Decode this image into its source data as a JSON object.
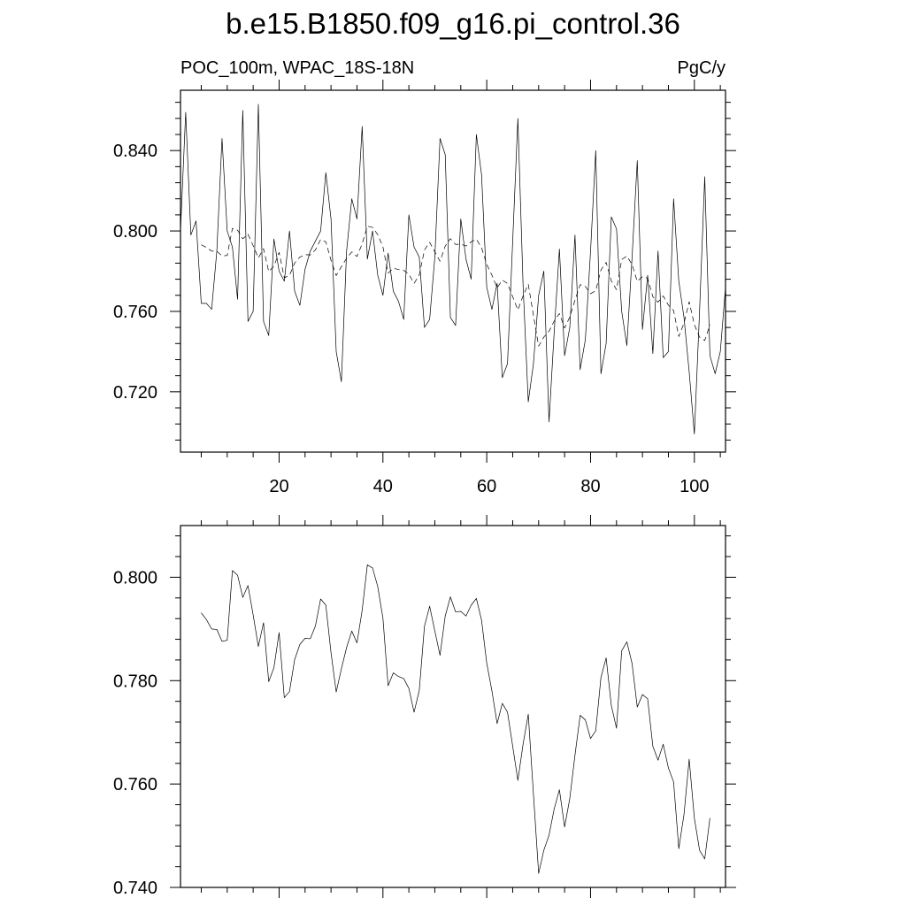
{
  "figure": {
    "title": "b.e15.B1850.f09_g16.pi_control.36",
    "left_subtitle": "POC_100m, WPAC_18S-18N",
    "right_subtitle": "PgC/y"
  },
  "chart_data": [
    {
      "type": "line",
      "title": "b.e15.B1850.f09_g16.pi_control.36",
      "subtitle_left": "POC_100m, WPAC_18S-18N",
      "subtitle_right": "PgC/y",
      "xlim": [
        1,
        106
      ],
      "ylim": [
        0.69,
        0.87
      ],
      "x_ticks": [
        20,
        40,
        60,
        80,
        100
      ],
      "y_ticks": [
        0.72,
        0.76,
        0.8,
        0.84
      ],
      "x_tick_labels": [
        "20",
        "40",
        "60",
        "80",
        "100"
      ],
      "y_tick_labels": [
        "0.720",
        "0.760",
        "0.800",
        "0.840"
      ],
      "grid": false,
      "series": [
        {
          "style": "solid",
          "x_start": 1,
          "values": [
            0.8,
            0.859,
            0.798,
            0.805,
            0.764,
            0.764,
            0.761,
            0.79,
            0.846,
            0.8,
            0.792,
            0.766,
            0.86,
            0.755,
            0.76,
            0.863,
            0.755,
            0.748,
            0.796,
            0.78,
            0.775,
            0.8,
            0.77,
            0.763,
            0.781,
            0.79,
            0.795,
            0.8,
            0.829,
            0.806,
            0.74,
            0.725,
            0.79,
            0.816,
            0.806,
            0.852,
            0.786,
            0.8,
            0.778,
            0.768,
            0.789,
            0.77,
            0.765,
            0.756,
            0.808,
            0.792,
            0.787,
            0.752,
            0.756,
            0.787,
            0.846,
            0.838,
            0.757,
            0.753,
            0.806,
            0.786,
            0.776,
            0.848,
            0.828,
            0.772,
            0.761,
            0.774,
            0.727,
            0.734,
            0.795,
            0.856,
            0.773,
            0.715,
            0.734,
            0.768,
            0.78,
            0.705,
            0.75,
            0.791,
            0.738,
            0.752,
            0.798,
            0.731,
            0.746,
            0.79,
            0.84,
            0.729,
            0.744,
            0.807,
            0.801,
            0.76,
            0.743,
            0.787,
            0.835,
            0.751,
            0.778,
            0.739,
            0.79,
            0.737,
            0.74,
            0.816,
            0.775,
            0.757,
            0.73,
            0.699,
            0.76,
            0.827,
            0.738,
            0.729,
            0.74,
            0.772
          ]
        },
        {
          "style": "dashed",
          "x_start": 5,
          "values": [
            0.7931,
            0.7918,
            0.79,
            0.7899,
            0.7876,
            0.7878,
            0.8013,
            0.8004,
            0.7961,
            0.7984,
            0.7927,
            0.7866,
            0.7912,
            0.7798,
            0.7825,
            0.7893,
            0.7767,
            0.7779,
            0.7841,
            0.787,
            0.7882,
            0.7881,
            0.7906,
            0.7958,
            0.7946,
            0.7854,
            0.7778,
            0.7823,
            0.7864,
            0.7896,
            0.7873,
            0.7936,
            0.8024,
            0.8018,
            0.7982,
            0.7921,
            0.779,
            0.7815,
            0.7808,
            0.7804,
            0.7785,
            0.7739,
            0.7781,
            0.7905,
            0.7944,
            0.7896,
            0.7849,
            0.7925,
            0.7962,
            0.7933,
            0.7934,
            0.7925,
            0.7946,
            0.7959,
            0.7917,
            0.7834,
            0.778,
            0.7717,
            0.7756,
            0.7739,
            0.7673,
            0.7607,
            0.7677,
            0.7735,
            0.758,
            0.7427,
            0.7472,
            0.7501,
            0.7552,
            0.7589,
            0.7517,
            0.7572,
            0.7656,
            0.7733,
            0.7724,
            0.7688,
            0.7703,
            0.7806,
            0.7844,
            0.7752,
            0.7708,
            0.7858,
            0.7875,
            0.7833,
            0.7749,
            0.7773,
            0.7765,
            0.7673,
            0.7646,
            0.7677,
            0.7631,
            0.7604,
            0.7475,
            0.7541,
            0.7648,
            0.7534,
            0.7472,
            0.7455,
            0.7534
          ]
        }
      ]
    },
    {
      "type": "line",
      "xlim": [
        1,
        106
      ],
      "ylim": [
        0.74,
        0.81
      ],
      "x_ticks": [
        20,
        40,
        60,
        80,
        100
      ],
      "y_ticks": [
        0.74,
        0.76,
        0.78,
        0.8
      ],
      "y_tick_labels": [
        "0.740",
        "0.760",
        "0.780",
        "0.800"
      ],
      "grid": false,
      "series": [
        {
          "style": "solid",
          "x_start": 5,
          "values": [
            0.7931,
            0.7918,
            0.79,
            0.7899,
            0.7876,
            0.7878,
            0.8013,
            0.8004,
            0.7961,
            0.7984,
            0.7927,
            0.7866,
            0.7912,
            0.7798,
            0.7825,
            0.7893,
            0.7767,
            0.7779,
            0.7841,
            0.787,
            0.7882,
            0.7881,
            0.7906,
            0.7958,
            0.7946,
            0.7854,
            0.7778,
            0.7823,
            0.7864,
            0.7896,
            0.7873,
            0.7936,
            0.8024,
            0.8018,
            0.7982,
            0.7921,
            0.779,
            0.7815,
            0.7808,
            0.7804,
            0.7785,
            0.7739,
            0.7781,
            0.7905,
            0.7944,
            0.7896,
            0.7849,
            0.7925,
            0.7962,
            0.7933,
            0.7934,
            0.7925,
            0.7946,
            0.7959,
            0.7917,
            0.7834,
            0.778,
            0.7717,
            0.7756,
            0.7739,
            0.7673,
            0.7607,
            0.7677,
            0.7735,
            0.758,
            0.7427,
            0.7472,
            0.7501,
            0.7552,
            0.7589,
            0.7517,
            0.7572,
            0.7656,
            0.7733,
            0.7724,
            0.7688,
            0.7703,
            0.7806,
            0.7844,
            0.7752,
            0.7708,
            0.7858,
            0.7875,
            0.7833,
            0.7749,
            0.7773,
            0.7765,
            0.7673,
            0.7646,
            0.7677,
            0.7631,
            0.7604,
            0.7475,
            0.7541,
            0.7648,
            0.7534,
            0.7472,
            0.7455,
            0.7534
          ]
        }
      ]
    }
  ]
}
